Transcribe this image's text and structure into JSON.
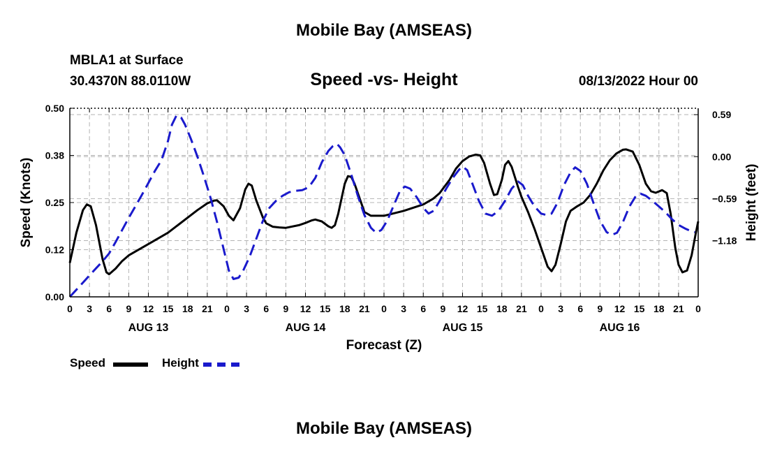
{
  "header": {
    "title": "Mobile Bay (AMSEAS)",
    "station": "MBLA1 at Surface",
    "coords": "30.4370N  88.0110W",
    "datetime": "08/13/2022 Hour 00",
    "footer_title": "Mobile Bay (AMSEAS)"
  },
  "legend": {
    "speed_label": "Speed",
    "height_label": "Height"
  },
  "colors": {
    "speed": "#000000",
    "height": "#1a1acc",
    "grid": "#b4b4b4"
  },
  "chart_data": {
    "type": "line",
    "title": "Speed -vs- Height",
    "xlabel": "Forecast (Z)",
    "ylabel": "Speed (Knots)",
    "y2label": "Height (feet)",
    "xlim": [
      0,
      96
    ],
    "ylim": [
      0,
      0.5
    ],
    "y2lim": [
      -1.97,
      0.68
    ],
    "x_tick_values": [
      0,
      3,
      6,
      9,
      12,
      15,
      18,
      21,
      24,
      27,
      30,
      33,
      36,
      39,
      42,
      45,
      48,
      51,
      54,
      57,
      60,
      63,
      66,
      69,
      72,
      75,
      78,
      81,
      84,
      87,
      90,
      93,
      96
    ],
    "x_tick_labels": [
      "0",
      "3",
      "6",
      "9",
      "12",
      "15",
      "18",
      "21",
      "0",
      "3",
      "6",
      "9",
      "12",
      "15",
      "18",
      "21",
      "0",
      "3",
      "6",
      "9",
      "12",
      "15",
      "18",
      "21",
      "0",
      "3",
      "6",
      "9",
      "12",
      "15",
      "18",
      "21",
      "0"
    ],
    "day_labels": [
      {
        "label": "AUG 13",
        "x": 12
      },
      {
        "label": "AUG 14",
        "x": 36
      },
      {
        "label": "AUG 15",
        "x": 60
      },
      {
        "label": "AUG 16",
        "x": 84
      }
    ],
    "y_tick_values": [
      0.0,
      0.125,
      0.25,
      0.375,
      0.5
    ],
    "y_tick_labels": [
      "0.00",
      "0.12",
      "0.25",
      "0.38",
      "0.50"
    ],
    "y2_tick_values": [
      -1.18,
      -0.59,
      0.0,
      0.59
    ],
    "y2_tick_labels": [
      "−1.18",
      "−0.59",
      "0.00",
      "0.59"
    ],
    "series": [
      {
        "name": "Speed",
        "axis": "left",
        "style": "solid",
        "points": [
          [
            0,
            0.09
          ],
          [
            1,
            0.17
          ],
          [
            2,
            0.23
          ],
          [
            2.6,
            0.245
          ],
          [
            3.2,
            0.24
          ],
          [
            4,
            0.19
          ],
          [
            5,
            0.1
          ],
          [
            5.6,
            0.065
          ],
          [
            6,
            0.06
          ],
          [
            7,
            0.075
          ],
          [
            8,
            0.095
          ],
          [
            9,
            0.11
          ],
          [
            12,
            0.14
          ],
          [
            15,
            0.17
          ],
          [
            18,
            0.21
          ],
          [
            19.5,
            0.23
          ],
          [
            21,
            0.248
          ],
          [
            22,
            0.255
          ],
          [
            22.5,
            0.256
          ],
          [
            23.5,
            0.24
          ],
          [
            24.3,
            0.215
          ],
          [
            25,
            0.203
          ],
          [
            26,
            0.235
          ],
          [
            26.8,
            0.285
          ],
          [
            27.3,
            0.3
          ],
          [
            27.8,
            0.295
          ],
          [
            28.5,
            0.255
          ],
          [
            29.5,
            0.21
          ],
          [
            30,
            0.195
          ],
          [
            31,
            0.186
          ],
          [
            32,
            0.184
          ],
          [
            33,
            0.183
          ],
          [
            35,
            0.19
          ],
          [
            36,
            0.196
          ],
          [
            37,
            0.203
          ],
          [
            37.5,
            0.205
          ],
          [
            38.5,
            0.2
          ],
          [
            39.5,
            0.187
          ],
          [
            40,
            0.183
          ],
          [
            40.5,
            0.19
          ],
          [
            41,
            0.22
          ],
          [
            41.5,
            0.26
          ],
          [
            42,
            0.3
          ],
          [
            42.5,
            0.32
          ],
          [
            43,
            0.318
          ],
          [
            43.5,
            0.3
          ],
          [
            44.5,
            0.25
          ],
          [
            45,
            0.225
          ],
          [
            46,
            0.215
          ],
          [
            48,
            0.215
          ],
          [
            51,
            0.228
          ],
          [
            54,
            0.245
          ],
          [
            55.5,
            0.26
          ],
          [
            56.5,
            0.275
          ],
          [
            58,
            0.31
          ],
          [
            59,
            0.34
          ],
          [
            60,
            0.36
          ],
          [
            61,
            0.372
          ],
          [
            62,
            0.377
          ],
          [
            62.7,
            0.375
          ],
          [
            63.3,
            0.355
          ],
          [
            64.2,
            0.3
          ],
          [
            64.8,
            0.27
          ],
          [
            65.3,
            0.272
          ],
          [
            66,
            0.31
          ],
          [
            66.5,
            0.35
          ],
          [
            67,
            0.36
          ],
          [
            67.5,
            0.345
          ],
          [
            68.5,
            0.29
          ],
          [
            69,
            0.265
          ],
          [
            70,
            0.225
          ],
          [
            71,
            0.18
          ],
          [
            72,
            0.13
          ],
          [
            73,
            0.08
          ],
          [
            73.6,
            0.068
          ],
          [
            74.2,
            0.085
          ],
          [
            75,
            0.14
          ],
          [
            75.8,
            0.2
          ],
          [
            76.5,
            0.228
          ],
          [
            77.5,
            0.24
          ],
          [
            78.5,
            0.25
          ],
          [
            79.5,
            0.27
          ],
          [
            80.5,
            0.3
          ],
          [
            81.5,
            0.335
          ],
          [
            82.5,
            0.362
          ],
          [
            83.5,
            0.38
          ],
          [
            84.5,
            0.39
          ],
          [
            85,
            0.391
          ],
          [
            86,
            0.385
          ],
          [
            87,
            0.35
          ],
          [
            88,
            0.3
          ],
          [
            88.8,
            0.28
          ],
          [
            89.5,
            0.276
          ],
          [
            90.5,
            0.283
          ],
          [
            91.2,
            0.275
          ],
          [
            91.8,
            0.22
          ],
          [
            92.5,
            0.13
          ],
          [
            93,
            0.085
          ],
          [
            93.6,
            0.065
          ],
          [
            94.3,
            0.07
          ],
          [
            95,
            0.11
          ],
          [
            95.6,
            0.165
          ],
          [
            96,
            0.2
          ]
        ]
      },
      {
        "name": "Height",
        "axis": "right",
        "style": "dashed",
        "points": [
          [
            0,
            -1.97
          ],
          [
            1,
            -1.87
          ],
          [
            2,
            -1.77
          ],
          [
            3,
            -1.67
          ],
          [
            4,
            -1.57
          ],
          [
            5,
            -1.47
          ],
          [
            6,
            -1.36
          ],
          [
            7,
            -1.2
          ],
          [
            8,
            -1.03
          ],
          [
            9,
            -0.86
          ],
          [
            10,
            -0.7
          ],
          [
            11,
            -0.54
          ],
          [
            12,
            -0.37
          ],
          [
            13,
            -0.2
          ],
          [
            14,
            -0.05
          ],
          [
            15,
            0.22
          ],
          [
            15.6,
            0.45
          ],
          [
            16.3,
            0.58
          ],
          [
            17,
            0.55
          ],
          [
            17.6,
            0.45
          ],
          [
            18.5,
            0.25
          ],
          [
            19.5,
            0.0
          ],
          [
            20.5,
            -0.28
          ],
          [
            21.5,
            -0.58
          ],
          [
            22.5,
            -0.92
          ],
          [
            23.5,
            -1.3
          ],
          [
            24.3,
            -1.6
          ],
          [
            25,
            -1.72
          ],
          [
            25.8,
            -1.7
          ],
          [
            26.5,
            -1.6
          ],
          [
            27.5,
            -1.4
          ],
          [
            28.5,
            -1.15
          ],
          [
            29.5,
            -0.9
          ],
          [
            30.5,
            -0.72
          ],
          [
            31.5,
            -0.62
          ],
          [
            32.5,
            -0.55
          ],
          [
            33.5,
            -0.5
          ],
          [
            34.5,
            -0.48
          ],
          [
            35.5,
            -0.47
          ],
          [
            36.5,
            -0.43
          ],
          [
            37.5,
            -0.3
          ],
          [
            38.5,
            -0.08
          ],
          [
            39.5,
            0.08
          ],
          [
            40.2,
            0.15
          ],
          [
            40.8,
            0.18
          ],
          [
            41.3,
            0.13
          ],
          [
            42,
            0.02
          ],
          [
            43,
            -0.25
          ],
          [
            44,
            -0.55
          ],
          [
            45,
            -0.82
          ],
          [
            46,
            -1.0
          ],
          [
            46.8,
            -1.07
          ],
          [
            47.6,
            -1.03
          ],
          [
            48.5,
            -0.9
          ],
          [
            49.5,
            -0.68
          ],
          [
            50.5,
            -0.47
          ],
          [
            51.2,
            -0.42
          ],
          [
            52,
            -0.45
          ],
          [
            53,
            -0.57
          ],
          [
            54,
            -0.72
          ],
          [
            54.8,
            -0.8
          ],
          [
            55.6,
            -0.76
          ],
          [
            56.5,
            -0.62
          ],
          [
            57.5,
            -0.45
          ],
          [
            58.5,
            -0.3
          ],
          [
            59.5,
            -0.18
          ],
          [
            60,
            -0.14
          ],
          [
            60.7,
            -0.19
          ],
          [
            61.5,
            -0.38
          ],
          [
            62.5,
            -0.62
          ],
          [
            63.5,
            -0.8
          ],
          [
            64.5,
            -0.83
          ],
          [
            65.5,
            -0.76
          ],
          [
            66.5,
            -0.62
          ],
          [
            67.5,
            -0.45
          ],
          [
            68.5,
            -0.35
          ],
          [
            69.2,
            -0.4
          ],
          [
            70,
            -0.55
          ],
          [
            71,
            -0.7
          ],
          [
            72,
            -0.8
          ],
          [
            72.8,
            -0.82
          ],
          [
            73.6,
            -0.8
          ],
          [
            74.5,
            -0.65
          ],
          [
            75.5,
            -0.4
          ],
          [
            76.5,
            -0.22
          ],
          [
            77.2,
            -0.15
          ],
          [
            78,
            -0.2
          ],
          [
            79,
            -0.38
          ],
          [
            80,
            -0.65
          ],
          [
            81,
            -0.9
          ],
          [
            82,
            -1.06
          ],
          [
            82.8,
            -1.1
          ],
          [
            83.6,
            -1.07
          ],
          [
            84.5,
            -0.92
          ],
          [
            85.5,
            -0.7
          ],
          [
            86.5,
            -0.55
          ],
          [
            87.2,
            -0.52
          ],
          [
            88,
            -0.55
          ],
          [
            89,
            -0.62
          ],
          [
            90,
            -0.7
          ],
          [
            91,
            -0.78
          ],
          [
            92,
            -0.88
          ],
          [
            93,
            -0.96
          ],
          [
            94,
            -1.01
          ],
          [
            95,
            -1.05
          ],
          [
            95.5,
            -1.06
          ]
        ]
      }
    ]
  }
}
